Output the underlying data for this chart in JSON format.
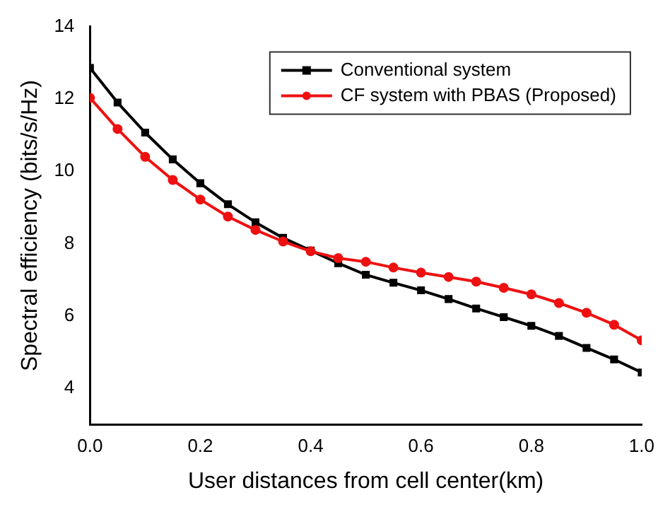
{
  "chart_data": {
    "type": "line",
    "xlabel": "User distances from cell center(km)",
    "ylabel": "Spectral efficiency (bits/s/Hz)",
    "x": [
      0,
      0.05,
      0.1,
      0.15,
      0.2,
      0.25,
      0.3,
      0.35,
      0.4,
      0.45,
      0.5,
      0.55,
      0.6,
      0.65,
      0.7,
      0.75,
      0.8,
      0.85,
      0.9,
      0.95,
      1.0
    ],
    "series": [
      {
        "name": "Conventional system",
        "color": "#000000",
        "marker": "square",
        "values": [
          12.86,
          11.9,
          11.07,
          10.33,
          9.67,
          9.09,
          8.59,
          8.16,
          7.81,
          7.46,
          7.14,
          6.92,
          6.71,
          6.47,
          6.21,
          5.97,
          5.73,
          5.45,
          5.12,
          4.8,
          4.44
        ]
      },
      {
        "name": "CF system with PBAS (Proposed)",
        "color": "#ee1111",
        "marker": "circle",
        "values": [
          12.03,
          11.17,
          10.4,
          9.76,
          9.22,
          8.75,
          8.38,
          8.06,
          7.79,
          7.6,
          7.5,
          7.34,
          7.2,
          7.08,
          6.95,
          6.78,
          6.6,
          6.36,
          6.09,
          5.76,
          5.33
        ]
      }
    ],
    "xlim": [
      0,
      1.0
    ],
    "xticks": [
      {
        "value": 0,
        "label": "0.0"
      },
      0.2,
      0.4,
      0.6,
      0.8,
      {
        "value": 1,
        "label": "1.0"
      }
    ],
    "ylim": [
      3,
      14
    ],
    "yticks": [
      4,
      6,
      8,
      10,
      12,
      14
    ],
    "grid": false,
    "legend": "top right",
    "line_style": "solid"
  }
}
